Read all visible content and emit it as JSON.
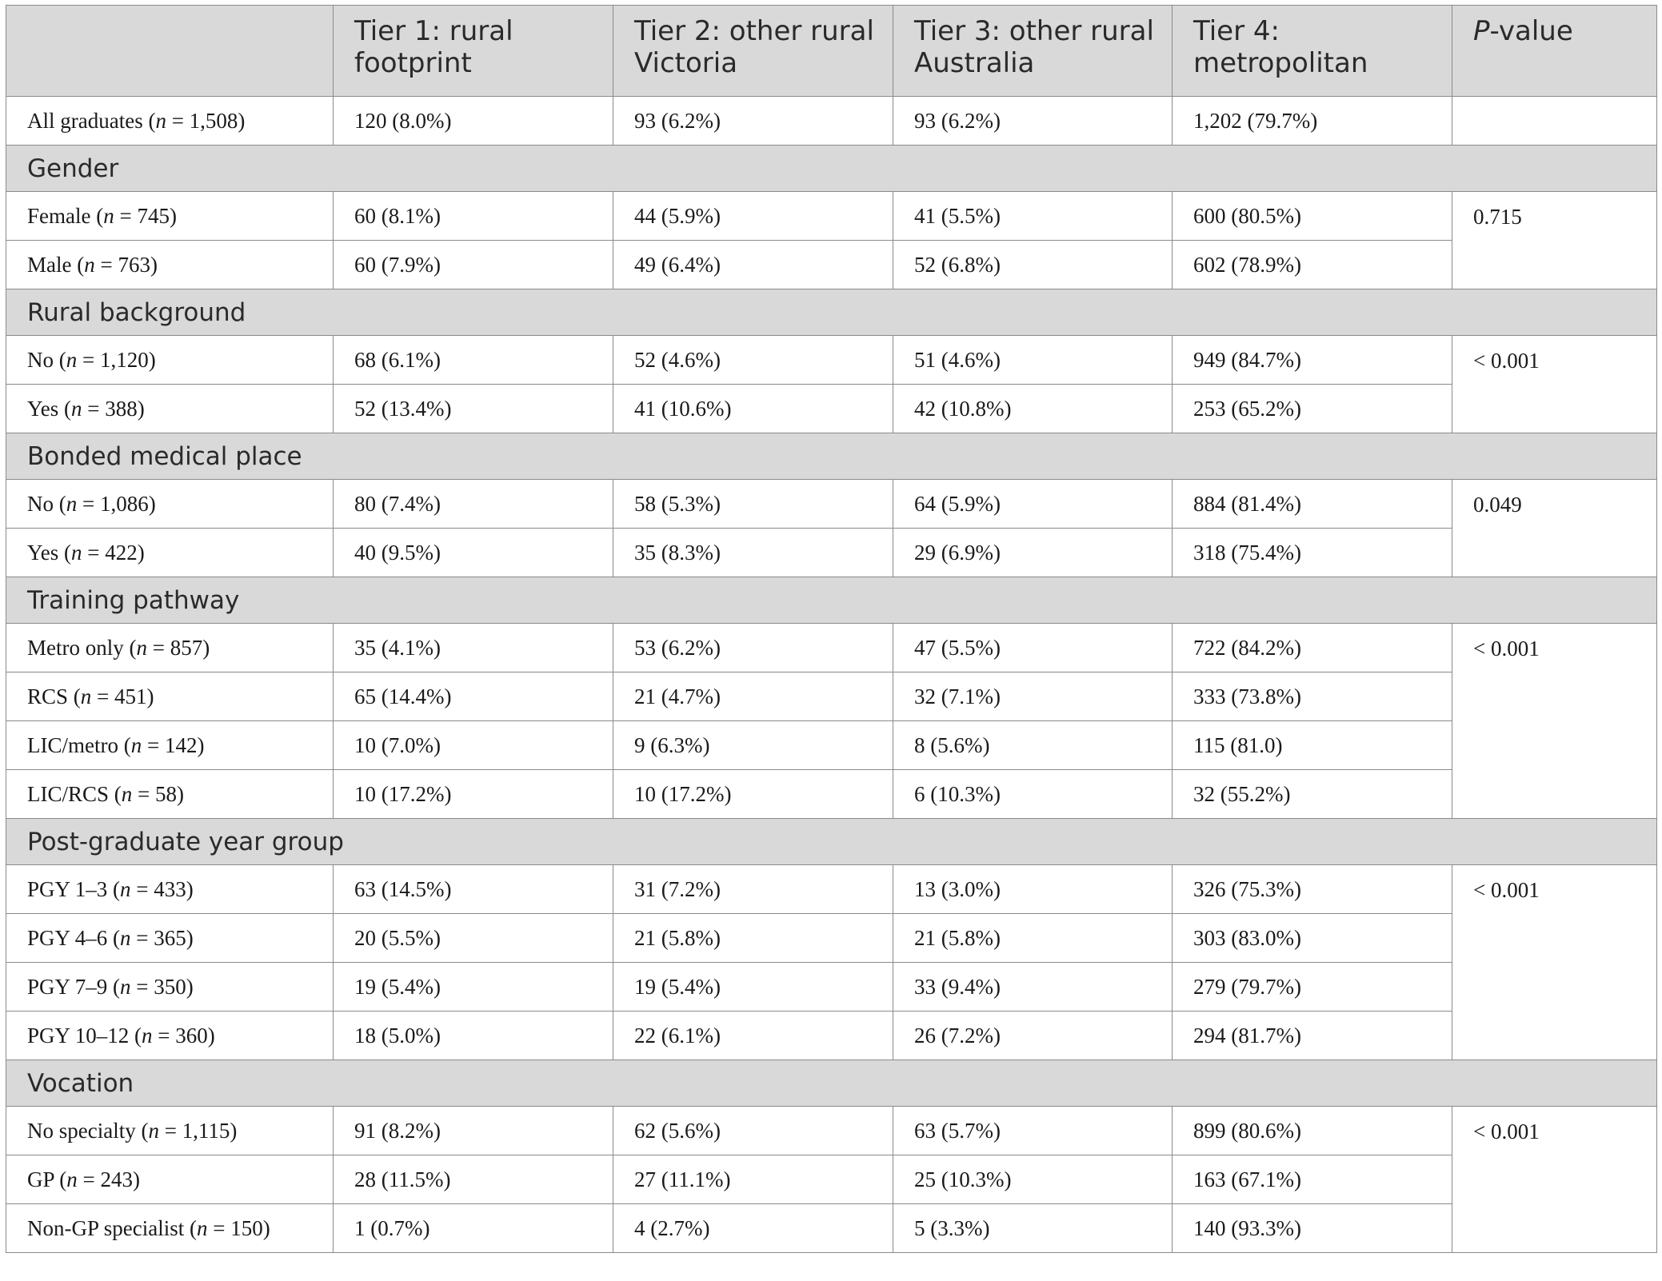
{
  "table": {
    "headers": [
      "",
      "Tier 1: rural footprint",
      "Tier 2: other rural Victoria",
      "Tier 3: other rural Australia",
      "Tier 4: metropolitan",
      "P-value"
    ],
    "header_pvalue_italic": "P",
    "header_pvalue_rest": "-value",
    "all_graduates": {
      "label_pre": "All graduates (",
      "label_n": "n",
      "label_post": " = 1,508)",
      "cells": [
        "120 (8.0%)",
        "93 (6.2%)",
        "93 (6.2%)",
        "1,202 (79.7%)"
      ]
    },
    "sections": [
      {
        "title": "Gender",
        "p_value": "0.715",
        "rows": [
          {
            "pre": "Female (",
            "post": " = 745)",
            "cells": [
              "60 (8.1%)",
              "44 (5.9%)",
              "41 (5.5%)",
              "600 (80.5%)"
            ]
          },
          {
            "pre": "Male (",
            "post": " = 763)",
            "cells": [
              "60 (7.9%)",
              "49 (6.4%)",
              "52 (6.8%)",
              "602 (78.9%)"
            ]
          }
        ]
      },
      {
        "title": "Rural background",
        "p_value": "< 0.001",
        "rows": [
          {
            "pre": "No (",
            "post": " = 1,120)",
            "cells": [
              "68 (6.1%)",
              "52 (4.6%)",
              "51 (4.6%)",
              "949 (84.7%)"
            ]
          },
          {
            "pre": "Yes (",
            "post": " = 388)",
            "cells": [
              "52 (13.4%)",
              "41 (10.6%)",
              "42 (10.8%)",
              "253 (65.2%)"
            ]
          }
        ]
      },
      {
        "title": "Bonded medical place",
        "p_value": "0.049",
        "rows": [
          {
            "pre": "No (",
            "post": " = 1,086)",
            "cells": [
              "80 (7.4%)",
              "58 (5.3%)",
              "64 (5.9%)",
              "884 (81.4%)"
            ]
          },
          {
            "pre": "Yes (",
            "post": " = 422)",
            "cells": [
              "40 (9.5%)",
              "35 (8.3%)",
              "29 (6.9%)",
              "318 (75.4%)"
            ]
          }
        ]
      },
      {
        "title": "Training pathway",
        "p_value": "< 0.001",
        "rows": [
          {
            "pre": "Metro only (",
            "post": " = 857)",
            "cells": [
              "35 (4.1%)",
              "53 (6.2%)",
              "47 (5.5%)",
              "722 (84.2%)"
            ]
          },
          {
            "pre": "RCS (",
            "post": " = 451)",
            "cells": [
              "65 (14.4%)",
              "21 (4.7%)",
              "32 (7.1%)",
              "333 (73.8%)"
            ]
          },
          {
            "pre": "LIC/metro (",
            "post": " = 142)",
            "cells": [
              "10 (7.0%)",
              "9 (6.3%)",
              "8 (5.6%)",
              "115 (81.0)"
            ]
          },
          {
            "pre": "LIC/RCS (",
            "post": " = 58)",
            "cells": [
              "10 (17.2%)",
              "10 (17.2%)",
              "6 (10.3%)",
              "32 (55.2%)"
            ]
          }
        ]
      },
      {
        "title": "Post-graduate year group",
        "p_value": "< 0.001",
        "rows": [
          {
            "pre": "PGY 1–3 (",
            "post": " = 433)",
            "cells": [
              "63 (14.5%)",
              "31 (7.2%)",
              "13 (3.0%)",
              "326 (75.3%)"
            ]
          },
          {
            "pre": "PGY 4–6 (",
            "post": " = 365)",
            "cells": [
              "20 (5.5%)",
              "21 (5.8%)",
              "21 (5.8%)",
              "303 (83.0%)"
            ]
          },
          {
            "pre": "PGY 7–9 (",
            "post": " = 350)",
            "cells": [
              "19 (5.4%)",
              "19 (5.4%)",
              "33 (9.4%)",
              "279 (79.7%)"
            ]
          },
          {
            "pre": "PGY 10–12 (",
            "post": " = 360)",
            "cells": [
              "18 (5.0%)",
              "22 (6.1%)",
              "26 (7.2%)",
              "294 (81.7%)"
            ]
          }
        ]
      },
      {
        "title": "Vocation",
        "p_value": "< 0.001",
        "rows": [
          {
            "pre": "No specialty (",
            "post": " = 1,115)",
            "cells": [
              "91 (8.2%)",
              "62 (5.6%)",
              "63 (5.7%)",
              "899 (80.6%)"
            ]
          },
          {
            "pre": "GP (",
            "post": " = 243)",
            "cells": [
              "28 (11.5%)",
              "27 (11.1%)",
              "25 (10.3%)",
              "163 (67.1%)"
            ]
          },
          {
            "pre": "Non-GP specialist (",
            "post": " = 150)",
            "cells": [
              "1 (0.7%)",
              "4 (2.7%)",
              "5 (3.3%)",
              "140 (93.3%)"
            ]
          }
        ]
      }
    ],
    "n_symbol": "n"
  }
}
